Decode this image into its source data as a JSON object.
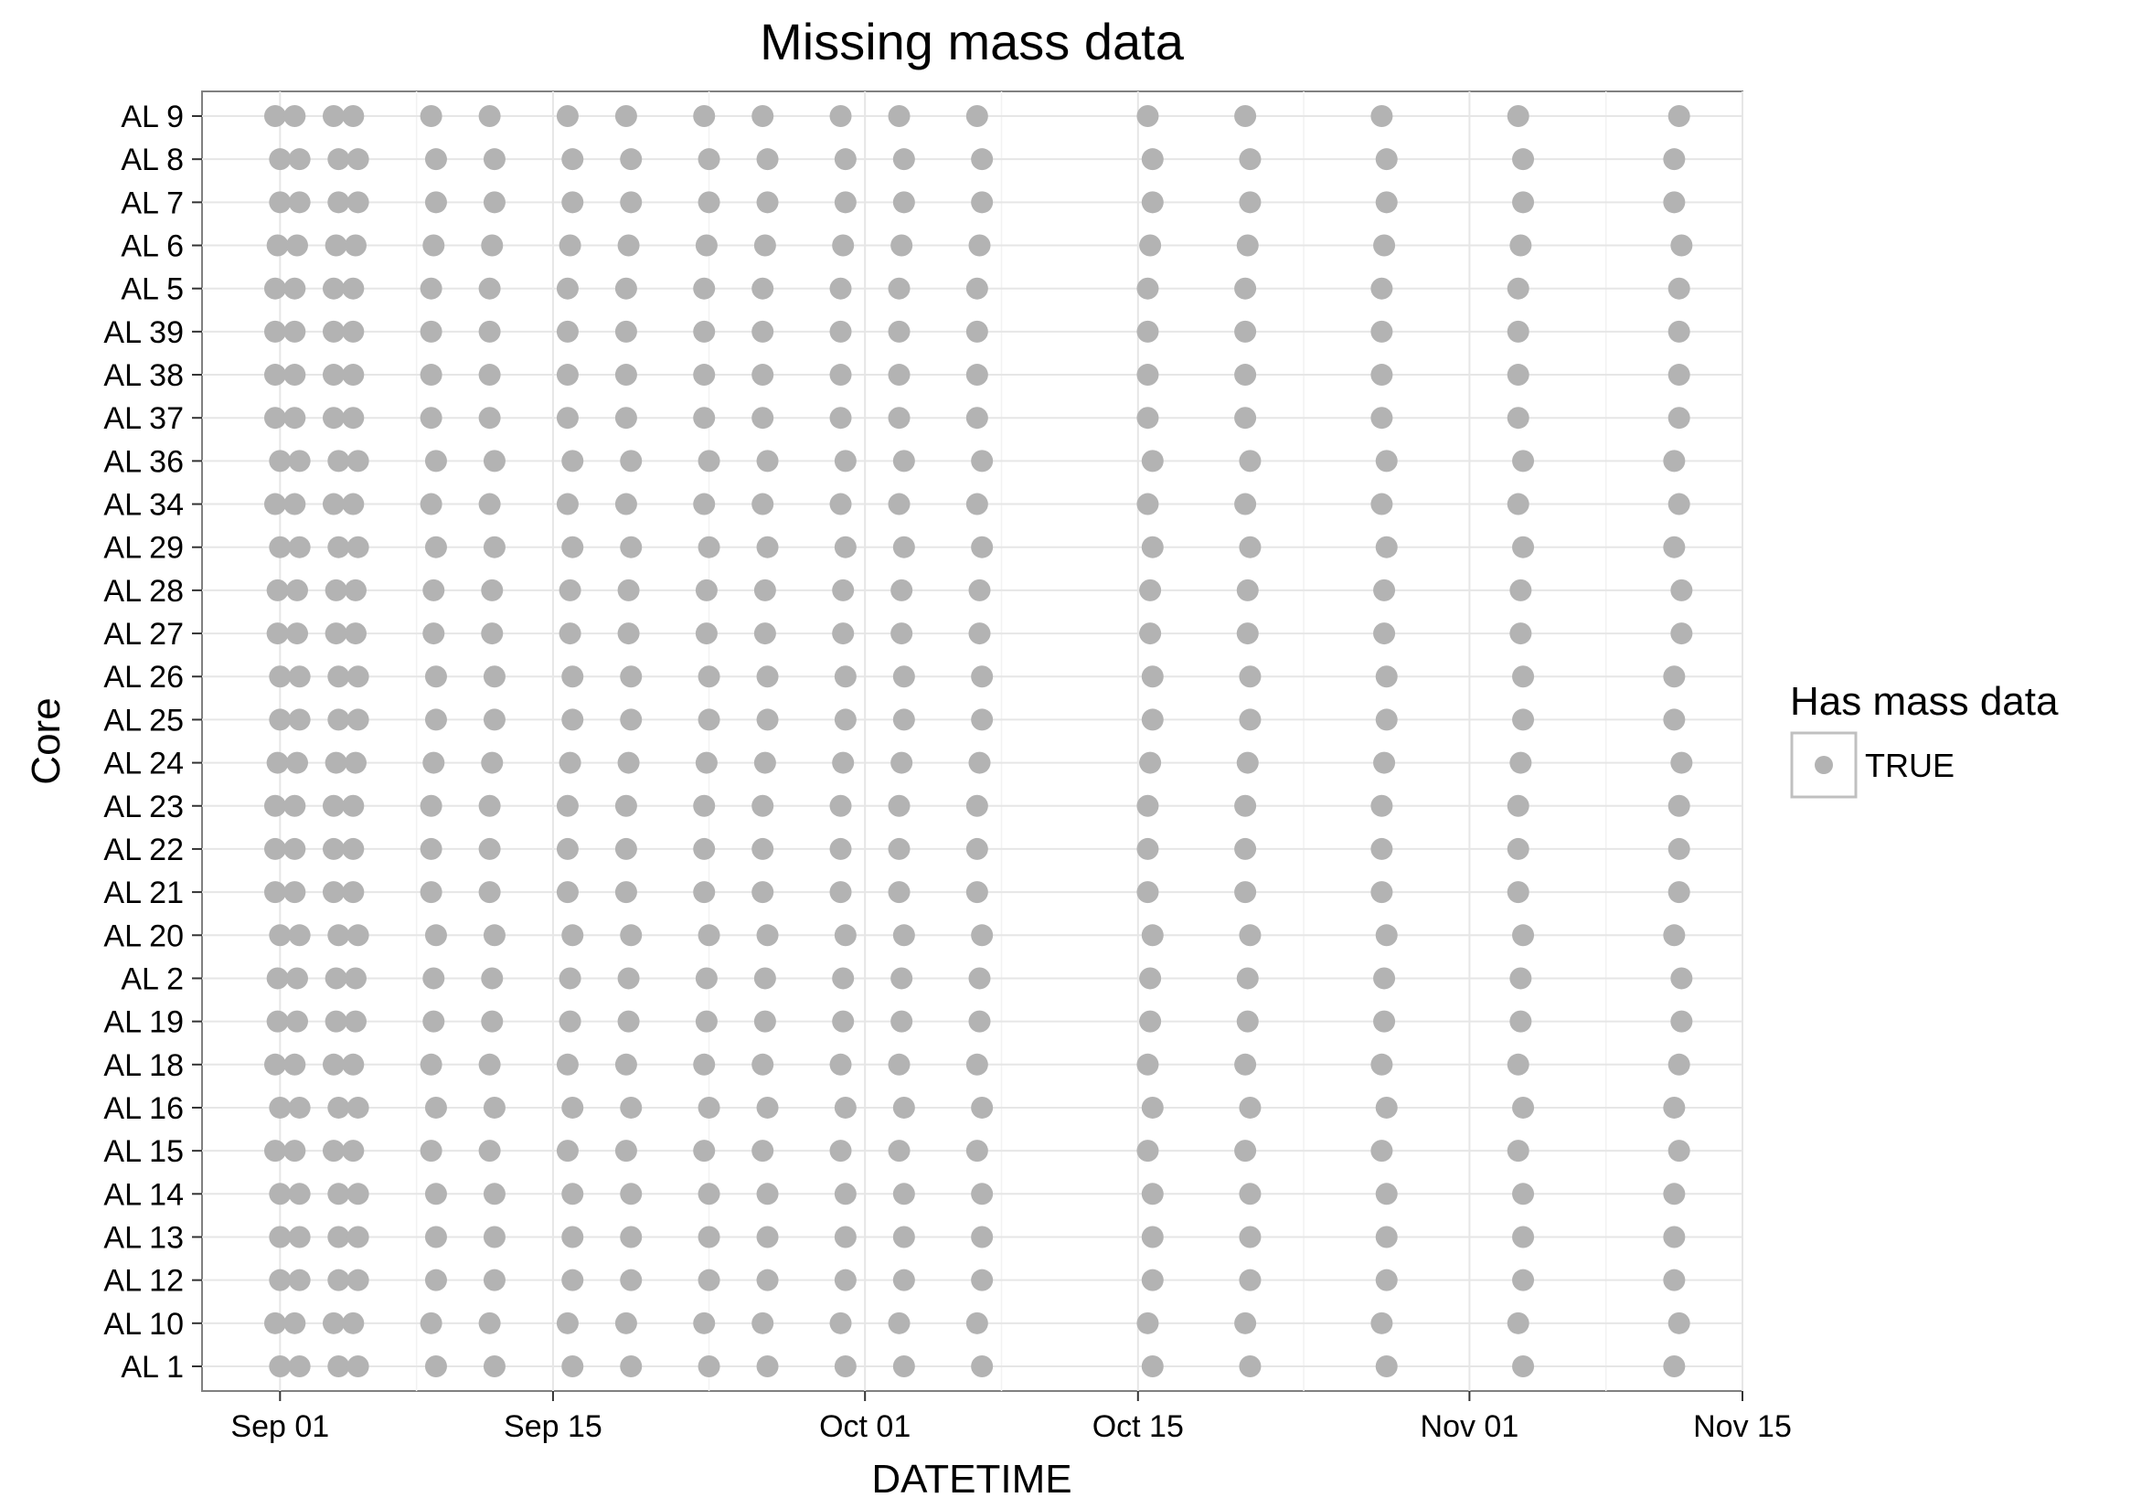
{
  "chart_data": {
    "type": "scatter",
    "title": "Missing mass data",
    "xlabel": "DATETIME",
    "ylabel": "Core",
    "x_ticks": [
      "Sep 01",
      "Sep 15",
      "Oct 01",
      "Oct 15",
      "Nov 01",
      "Nov 15"
    ],
    "x_tick_dates": [
      "2016-09-01",
      "2016-09-15",
      "2016-10-01",
      "2016-10-15",
      "2016-11-01",
      "2016-11-15"
    ],
    "xlim": [
      "2016-08-28",
      "2016-11-15"
    ],
    "categories": [
      "AL 1",
      "AL 10",
      "AL 12",
      "AL 13",
      "AL 14",
      "AL 15",
      "AL 16",
      "AL 18",
      "AL 19",
      "AL 2",
      "AL 20",
      "AL 21",
      "AL 22",
      "AL 23",
      "AL 24",
      "AL 25",
      "AL 26",
      "AL 27",
      "AL 28",
      "AL 29",
      "AL 34",
      "AL 36",
      "AL 37",
      "AL 38",
      "AL 39",
      "AL 5",
      "AL 6",
      "AL 7",
      "AL 8",
      "AL 9"
    ],
    "sample_dates_by_pattern": {
      "A": [
        "2016-08-31 18:00",
        "2016-09-01 18:00",
        "2016-09-03 18:00",
        "2016-09-04 18:00",
        "2016-09-08 18:00",
        "2016-09-11 18:00",
        "2016-09-15 18:00",
        "2016-09-18 18:00",
        "2016-09-22 18:00",
        "2016-09-25 18:00",
        "2016-09-29 18:00",
        "2016-10-02 18:00",
        "2016-10-06 18:00",
        "2016-10-15 12:00",
        "2016-10-20 12:00",
        "2016-10-27 12:00",
        "2016-11-03 12:00",
        "2016-11-11 18:00"
      ],
      "B": [
        "2016-08-31 21:00",
        "2016-09-01 21:00",
        "2016-09-03 21:00",
        "2016-09-04 21:00",
        "2016-09-08 21:00",
        "2016-09-11 21:00",
        "2016-09-15 21:00",
        "2016-09-18 21:00",
        "2016-09-22 21:00",
        "2016-09-25 21:00",
        "2016-09-29 21:00",
        "2016-10-02 21:00",
        "2016-10-06 21:00",
        "2016-10-15 15:00",
        "2016-10-20 15:00",
        "2016-10-27 15:00",
        "2016-11-03 15:00",
        "2016-11-11 21:00"
      ],
      "C": [
        "2016-09-01 00:00",
        "2016-09-02 00:00",
        "2016-09-04 00:00",
        "2016-09-05 00:00",
        "2016-09-09 00:00",
        "2016-09-12 00:00",
        "2016-09-16 00:00",
        "2016-09-19 00:00",
        "2016-09-23 00:00",
        "2016-09-26 00:00",
        "2016-09-30 00:00",
        "2016-10-03 00:00",
        "2016-10-07 00:00",
        "2016-10-15 18:00",
        "2016-10-20 18:00",
        "2016-10-27 18:00",
        "2016-11-03 18:00",
        "2016-11-11 12:00"
      ]
    },
    "series": [
      {
        "name": "TRUE",
        "color": "#b3b3b3",
        "patterns": {
          "AL 1": "C",
          "AL 10": "A",
          "AL 12": "C",
          "AL 13": "C",
          "AL 14": "C",
          "AL 15": "A",
          "AL 16": "C",
          "AL 18": "A",
          "AL 19": "B",
          "AL 2": "B",
          "AL 20": "C",
          "AL 21": "A",
          "AL 22": "A",
          "AL 23": "A",
          "AL 24": "B",
          "AL 25": "C",
          "AL 26": "C",
          "AL 27": "B",
          "AL 28": "B",
          "AL 29": "C",
          "AL 34": "A",
          "AL 36": "C",
          "AL 37": "A",
          "AL 38": "A",
          "AL 39": "A",
          "AL 5": "A",
          "AL 6": "B",
          "AL 7": "C",
          "AL 8": "C",
          "AL 9": "A"
        }
      }
    ],
    "grid": true,
    "legend": {
      "title": "Has mass data",
      "entries": [
        "TRUE"
      ],
      "placement": "right"
    }
  }
}
